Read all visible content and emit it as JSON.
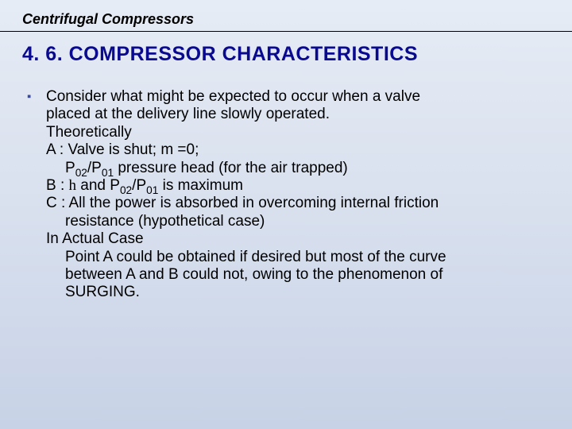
{
  "header": {
    "title": "Centrifugal Compressors"
  },
  "section": {
    "number_and_title": "4. 6. COMPRESSOR CHARACTERISTICS"
  },
  "body": {
    "bullet1_l1": "Consider what might be expected to occur when a valve",
    "bullet1_l2": "placed at the delivery line slowly operated.",
    "theoretically": "Theoretically",
    "a_l1_pre": "A : Valve is shut; m =0;",
    "a_l2_p": "P",
    "a_l2_02": "02",
    "a_l2_slash": "/P",
    "a_l2_01": "01",
    "a_l2_rest": " pressure head (for the air trapped)",
    "b_pre": "B : ",
    "b_eta": "h",
    "b_mid": " and P",
    "b_02": "02",
    "b_slash": "/P",
    "b_01": "01",
    "b_rest": " is maximum",
    "c_l1": "C : All the power is absorbed in overcoming internal friction",
    "c_l2": "resistance (hypothetical case)",
    "actual_heading": "In Actual Case",
    "actual_l1": "Point A could be obtained if desired but most of the curve",
    "actual_l2": "between A and B could not, owing to the phenomenon of",
    "actual_l3": "SURGING."
  },
  "colors": {
    "heading": "#0a0a90",
    "bullet": "#3a4aa0",
    "text": "#000000",
    "bg_top": "#e6ecf5",
    "bg_bottom": "#c7d2e6"
  },
  "typography": {
    "header_title_pt": 18,
    "section_heading_pt": 25,
    "body_pt": 19
  }
}
